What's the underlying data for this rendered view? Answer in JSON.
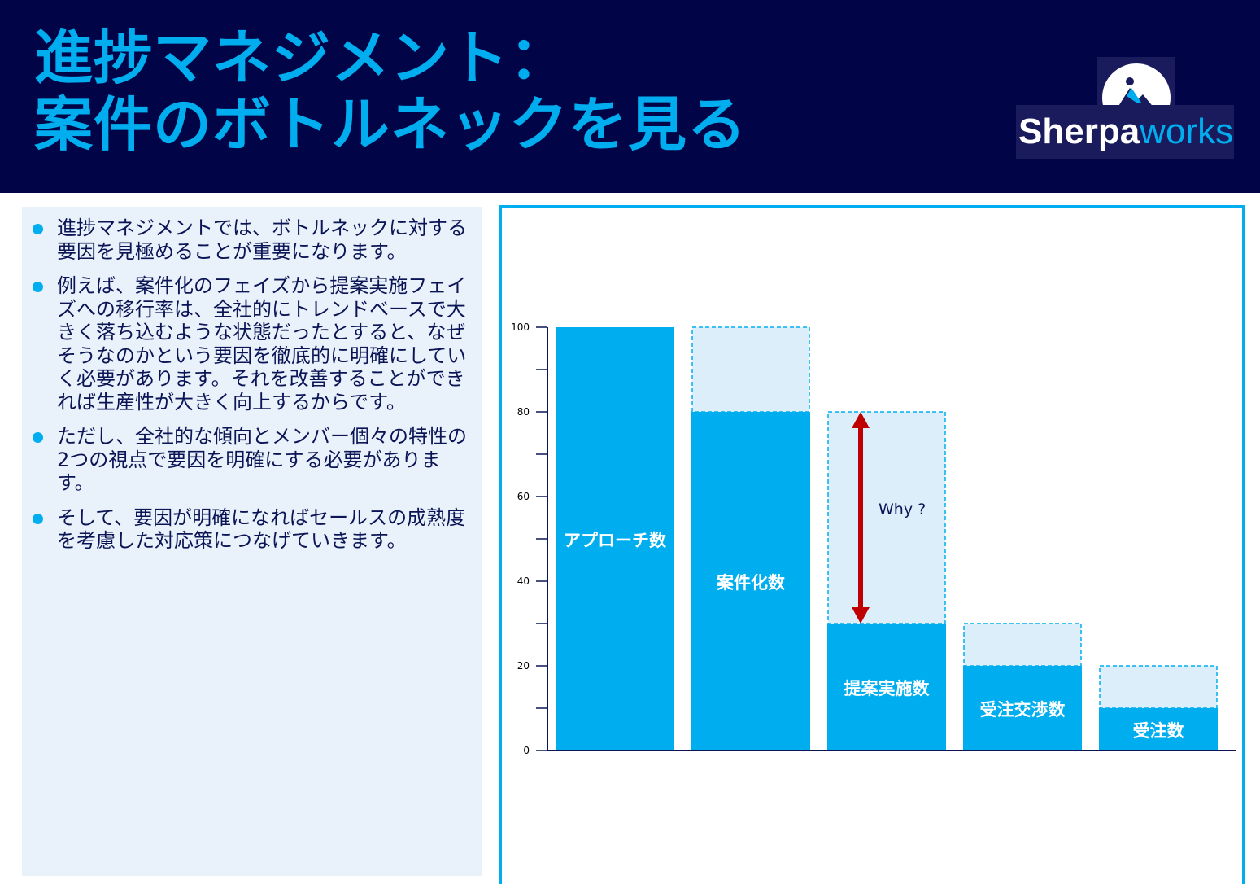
{
  "header": {
    "title_line1": "進捗マネジメント：",
    "title_line2": "案件のボトルネックを見る"
  },
  "logo": {
    "text_bold": "Sherpa",
    "text_light": "works"
  },
  "bullets": [
    "進捗マネジメントでは、ボトルネックに対する要因を見極めることが重要になります。",
    "例えば、案件化のフェイズから提案実施フェイズへの移行率は、全社的にトレンドベースで大きく落ち込むような状態だったとすると、なぜそうなのかという要因を徹底的に明確にしていく必要があります。それを改善することができれば生産性が大きく向上するからです。",
    "ただし、全社的な傾向とメンバー個々の特性の2つの視点で要因を明確にする必要があります。",
    "そして、要因が明確になればセールスの成熟度を考慮した対応策につなげていきます。"
  ],
  "chart_data": {
    "type": "bar",
    "categories": [
      "アプローチ数",
      "案件化数",
      "提案実施数",
      "受注交渉数",
      "受注数"
    ],
    "values": [
      100,
      80,
      30,
      20,
      10
    ],
    "previous_values": [
      100,
      100,
      80,
      30,
      20
    ],
    "ylim": [
      0,
      100
    ],
    "yticks": [
      0,
      20,
      40,
      60,
      80,
      100
    ],
    "minor_tick_step": 10,
    "annotation": {
      "text": "Why ?",
      "category_index": 2,
      "from": 30,
      "to": 80
    },
    "colors": {
      "bar": "#00aeef",
      "dropoff_fill": "#ddeefb",
      "dropoff_border": "#00aeef",
      "arrow": "#c00000",
      "axis": "#0b1556"
    }
  }
}
